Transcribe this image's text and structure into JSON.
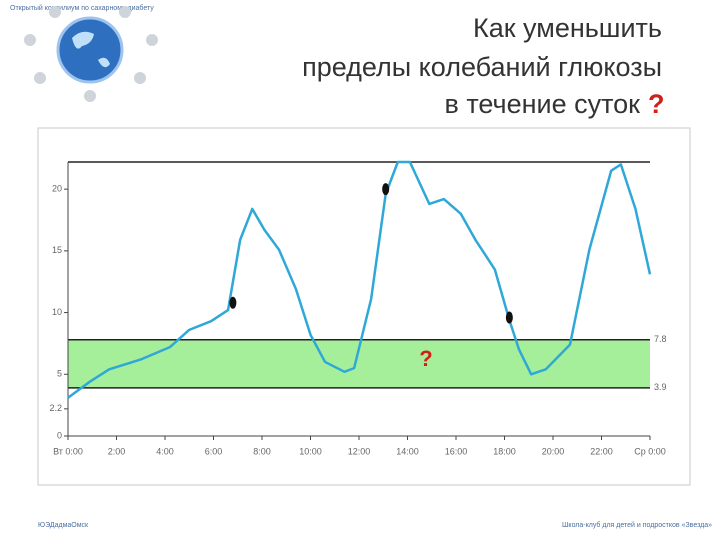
{
  "header": {
    "caption": "Открытый консилиум по сахарному диабету",
    "title_lines": [
      "Как уменьшить",
      "пределы колебаний глюкозы",
      "в течение суток"
    ],
    "title_mark": "?"
  },
  "chart_data": {
    "type": "line",
    "x": [
      0,
      0.9,
      1.7,
      3,
      4.2,
      5,
      5.9,
      6.6,
      7.1,
      7.6,
      8.1,
      8.7,
      9.4,
      10,
      10.6,
      11.4,
      11.8,
      12.5,
      13.1,
      13.6,
      14.1,
      14.9,
      15.5,
      16.2,
      16.8,
      17.6,
      18.2,
      18.6,
      19.1,
      19.7,
      20.7,
      21.5,
      22.4,
      22.8,
      23.4,
      24
    ],
    "series": [
      {
        "color": "#2fa8d8",
        "values": [
          3.1,
          4.4,
          5.4,
          6.2,
          7.2,
          8.6,
          9.3,
          10.2,
          15.9,
          18.4,
          16.7,
          15.1,
          11.9,
          8.2,
          6.0,
          5.2,
          5.5,
          11.1,
          19.6,
          22.2,
          22.2,
          18.8,
          19.2,
          18.0,
          15.9,
          13.5,
          9.4,
          7.0,
          5.0,
          5.4,
          7.4,
          15.1,
          21.5,
          22.0,
          18.4,
          13.1
        ]
      }
    ],
    "markers": {
      "x": [
        6.8,
        13.1,
        18.2
      ],
      "values": [
        10.8,
        20,
        9.6
      ],
      "color": "#111111"
    },
    "target_range": [
      3.9,
      7.8
    ],
    "band_color": "#a6ef9a",
    "annotation": "?",
    "xlim": [
      0,
      24
    ],
    "xticks": [
      {
        "value": 0,
        "label": "Вт 0:00"
      },
      {
        "value": 2,
        "label": "2:00"
      },
      {
        "value": 4,
        "label": "4:00"
      },
      {
        "value": 6,
        "label": "6:00"
      },
      {
        "value": 8,
        "label": "8:00"
      },
      {
        "value": 10,
        "label": "10:00"
      },
      {
        "value": 12,
        "label": "12:00"
      },
      {
        "value": 14,
        "label": "14:00"
      },
      {
        "value": 16,
        "label": "16:00"
      },
      {
        "value": 18,
        "label": "18:00"
      },
      {
        "value": 20,
        "label": "20:00"
      },
      {
        "value": 22,
        "label": "22:00"
      },
      {
        "value": 24,
        "label": "Ср 0:00"
      }
    ],
    "ylim": [
      0,
      22.2
    ],
    "yticks": [
      0,
      2.2,
      5,
      10,
      15,
      20
    ]
  },
  "footer": {
    "left": "ЮЭДадмаОмск",
    "right": "Школа-клуб для детей и подростков «Звезда»"
  }
}
